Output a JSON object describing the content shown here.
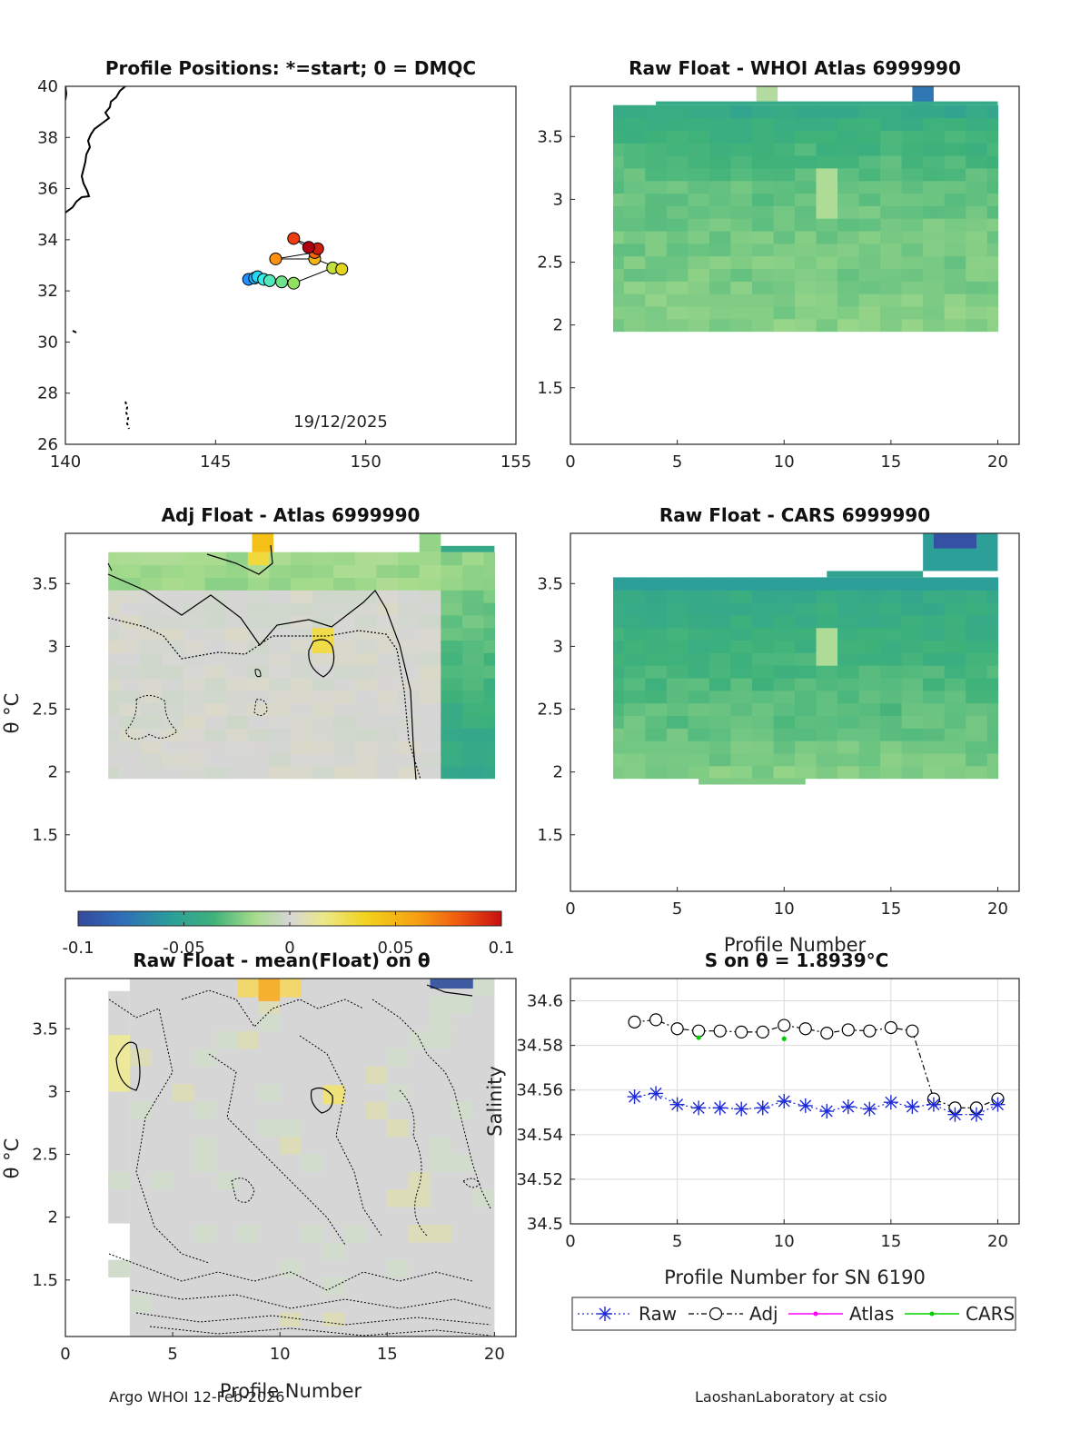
{
  "colors": {
    "raw": "#1f2bd6",
    "adj": "#000000",
    "atlas": "#ff00ff",
    "cars": "#00d000",
    "neutral": "#d6d6d6"
  },
  "footer": {
    "left": "Argo WHOI 12-Feb-2026",
    "right": "LaoshanLaboratory at csio"
  },
  "colorbar": {
    "min": -0.1,
    "max": 0.1,
    "tick_values": [
      -0.1,
      -0.05,
      0,
      0.05,
      0.1
    ],
    "tick_labels": [
      "-0.1",
      "-0.05",
      "0",
      "0.05",
      "0.1"
    ]
  },
  "chart_data": [
    {
      "id": "positions",
      "type": "scatter",
      "title": "Profile Positions: *=start; 0 = DMQC",
      "xlim": [
        140,
        155
      ],
      "ylim": [
        26,
        40
      ],
      "x_ticks": [
        "140",
        "145",
        "150",
        "155"
      ],
      "y_ticks": [
        "26",
        "28",
        "30",
        "32",
        "34",
        "36",
        "38",
        "40"
      ],
      "date_label": "19/12/2025",
      "lon": [
        146.1,
        146.3,
        146.4,
        146.6,
        146.8,
        147.2,
        147.6,
        148.9,
        149.2,
        148.3,
        147.0,
        148.3,
        147.6,
        148.4,
        148.1
      ],
      "lat": [
        32.45,
        32.5,
        32.55,
        32.45,
        32.4,
        32.35,
        32.3,
        32.9,
        32.85,
        33.25,
        33.25,
        33.5,
        34.05,
        33.65,
        33.7
      ],
      "profile": [
        1,
        2,
        3,
        4,
        5,
        6,
        7,
        8,
        9,
        10,
        11,
        12,
        13,
        14,
        15
      ]
    },
    {
      "id": "raw_whoi",
      "type": "heatmap",
      "title": "Raw Float - WHOI Atlas  6999990",
      "xlim": [
        0,
        21
      ],
      "ylim": [
        1.05,
        3.9
      ],
      "x_ticks": [
        "0",
        "5",
        "10",
        "15",
        "20"
      ],
      "y_ticks": [
        "1.5",
        "2",
        "2.5",
        "3",
        "3.5"
      ],
      "theta_range": [
        1.95,
        3.75
      ],
      "profiles": [
        2,
        20
      ],
      "level_values": [
        -0.046,
        -0.04,
        -0.037,
        -0.035,
        -0.033,
        -0.031,
        -0.03,
        -0.029,
        -0.028,
        -0.027,
        -0.026,
        -0.026,
        -0.025,
        -0.025,
        -0.024,
        -0.024,
        -0.023,
        -0.023
      ]
    },
    {
      "id": "adj_atlas",
      "type": "heatmap",
      "title": "Adj Float - Atlas  6999990",
      "xlim": [
        0,
        21
      ],
      "ylim": [
        1.05,
        3.9
      ],
      "x_ticks": [],
      "y_ticks": [
        "1.5",
        "2",
        "2.5",
        "3",
        "3.5"
      ],
      "ylabel": "θ °C",
      "theta_range": [
        1.95,
        3.75
      ],
      "profiles": [
        2,
        20
      ],
      "near_zero_profiles": [
        2,
        17
      ],
      "offset_profiles": [
        17,
        20
      ]
    },
    {
      "id": "raw_cars",
      "type": "heatmap",
      "title": "Raw Float - CARS  6999990",
      "xlim": [
        0,
        21
      ],
      "ylim": [
        1.05,
        3.9
      ],
      "x_ticks": [
        "0",
        "5",
        "10",
        "15",
        "20"
      ],
      "y_ticks": [
        "1.5",
        "2",
        "2.5",
        "3",
        "3.5"
      ],
      "xlabel": "Profile Number",
      "theta_range": [
        1.95,
        3.55
      ],
      "profiles": [
        2,
        20
      ]
    },
    {
      "id": "raw_mean",
      "type": "heatmap",
      "title": "Raw Float - mean(Float) on θ",
      "xlim": [
        0,
        21
      ],
      "ylim": [
        1.05,
        3.9
      ],
      "x_ticks": [
        "0",
        "5",
        "10",
        "15",
        "20"
      ],
      "y_ticks": [
        "1.5",
        "2",
        "2.5",
        "3",
        "3.5"
      ],
      "xlabel": "Profile Number",
      "ylabel": "θ °C",
      "theta_range": [
        1.05,
        3.9
      ],
      "profiles": [
        2,
        20
      ]
    },
    {
      "id": "s_on_theta",
      "type": "line",
      "title": "S on θ = 1.8939°C",
      "xlabel": "Profile Number for SN 6190",
      "ylabel": "Salinity",
      "xlim": [
        0,
        21
      ],
      "ylim": [
        34.5,
        34.61
      ],
      "x_ticks": [
        "0",
        "5",
        "10",
        "15",
        "20"
      ],
      "y_ticks": [
        "34.5",
        "34.52",
        "34.54",
        "34.56",
        "34.58",
        "34.6"
      ],
      "x": [
        3,
        4,
        5,
        6,
        7,
        8,
        9,
        10,
        11,
        12,
        13,
        14,
        15,
        16,
        17,
        18,
        19,
        20
      ],
      "series": [
        {
          "name": "Raw",
          "values": [
            34.557,
            34.5585,
            34.5535,
            34.552,
            34.552,
            34.5515,
            34.552,
            34.555,
            34.553,
            34.5505,
            34.5525,
            34.5515,
            34.5545,
            34.5525,
            34.5535,
            34.549,
            34.549,
            34.5535
          ]
        },
        {
          "name": "Adj",
          "values": [
            34.5905,
            34.5915,
            34.5875,
            34.5865,
            34.5865,
            34.586,
            34.586,
            34.589,
            34.5875,
            34.5855,
            34.587,
            34.5865,
            34.588,
            34.5865,
            34.556,
            34.552,
            34.552,
            34.556
          ]
        },
        {
          "name": "Atlas",
          "x": [],
          "values": []
        },
        {
          "name": "CARS",
          "x": [
            6,
            10
          ],
          "values": [
            34.5835,
            34.583
          ]
        }
      ],
      "legend": [
        "Raw",
        "Adj",
        "Atlas",
        "CARS"
      ],
      "legend_position": "bottom"
    }
  ]
}
